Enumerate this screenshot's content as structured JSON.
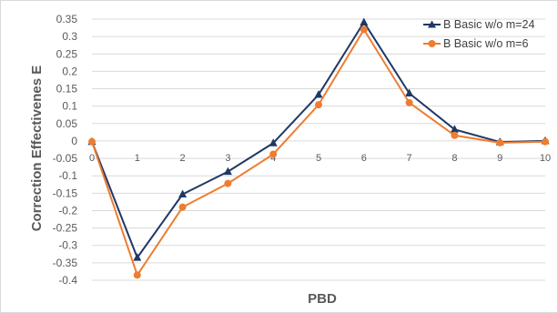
{
  "chart_data": {
    "type": "line",
    "title": "",
    "xlabel": "PBD",
    "ylabel": "Correction Effectivenes E",
    "x": [
      0,
      1,
      2,
      3,
      4,
      5,
      6,
      7,
      8,
      9,
      10
    ],
    "x_tick_labels": [
      "0",
      "1",
      "2",
      "3",
      "4",
      "5",
      "6",
      "7",
      "8",
      "9",
      "10"
    ],
    "y_tick_labels": [
      "0.35",
      "0.3",
      "0.25",
      "0.2",
      "0.15",
      "0.1",
      "0.05",
      "0",
      "-0.05",
      "-0.1",
      "-0.15",
      "-0.2",
      "-0.25",
      "-0.3",
      "-0.35",
      "-0.4"
    ],
    "ylim": [
      -0.4,
      0.35
    ],
    "grid": true,
    "legend_position": "top-right",
    "series": [
      {
        "name": "B Basic w/o m=24",
        "marker": "triangle",
        "color": "#203864",
        "values": [
          -0.002,
          -0.335,
          -0.153,
          -0.088,
          -0.006,
          0.133,
          0.341,
          0.137,
          0.033,
          -0.003,
          0.0
        ]
      },
      {
        "name": "B Basic w/o m=6",
        "marker": "circle",
        "color": "#ED7D31",
        "values": [
          -0.002,
          -0.385,
          -0.19,
          -0.122,
          -0.038,
          0.104,
          0.32,
          0.11,
          0.016,
          -0.005,
          -0.002
        ]
      }
    ]
  }
}
